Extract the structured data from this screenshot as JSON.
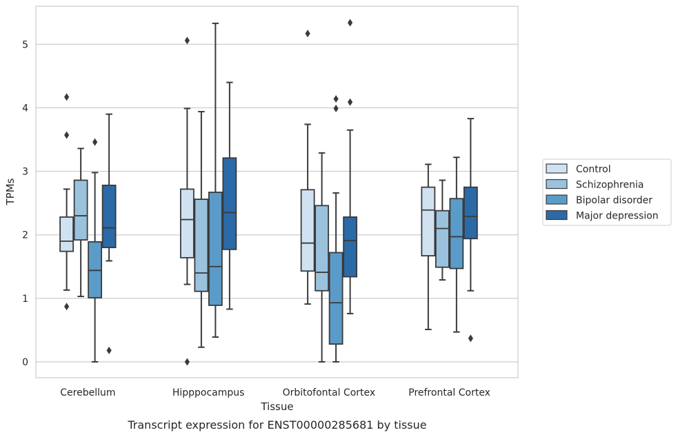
{
  "chart_data": {
    "type": "box",
    "caption": "Transcript expression for ENST00000285681 by tissue",
    "xlabel": "Tissue",
    "ylabel": "TPMs",
    "ylim": [
      -0.25,
      5.6
    ],
    "yticks": [
      0,
      1,
      2,
      3,
      4,
      5
    ],
    "grid": "horizontal",
    "legend_position": "right",
    "categories": [
      "Cerebellum",
      "Hipppocampus",
      "Orbitofontal Cortex",
      "Prefrontal Cortex"
    ],
    "series": [
      {
        "name": "Control",
        "color": "#d0e1f2",
        "boxes": [
          {
            "whisker_low": 1.13,
            "q1": 1.74,
            "median": 1.9,
            "q3": 2.28,
            "whisker_high": 2.72,
            "outliers": [
              0.87,
              3.57,
              4.17
            ]
          },
          {
            "whisker_low": 1.22,
            "q1": 1.64,
            "median": 2.24,
            "q3": 2.72,
            "whisker_high": 3.99,
            "outliers": [
              0.0,
              5.06
            ]
          },
          {
            "whisker_low": 0.91,
            "q1": 1.43,
            "median": 1.87,
            "q3": 2.71,
            "whisker_high": 3.74,
            "outliers": [
              5.17
            ]
          },
          {
            "whisker_low": 0.51,
            "q1": 1.67,
            "median": 2.39,
            "q3": 2.75,
            "whisker_high": 3.11,
            "outliers": []
          }
        ]
      },
      {
        "name": "Schizophrenia",
        "color": "#9ac2dc",
        "boxes": [
          {
            "whisker_low": 1.03,
            "q1": 1.92,
            "median": 2.3,
            "q3": 2.86,
            "whisker_high": 3.36,
            "outliers": []
          },
          {
            "whisker_low": 0.23,
            "q1": 1.11,
            "median": 1.4,
            "q3": 2.56,
            "whisker_high": 3.94,
            "outliers": []
          },
          {
            "whisker_low": 0.0,
            "q1": 1.12,
            "median": 1.41,
            "q3": 2.46,
            "whisker_high": 3.29,
            "outliers": []
          },
          {
            "whisker_low": 1.29,
            "q1": 1.49,
            "median": 2.1,
            "q3": 2.38,
            "whisker_high": 2.86,
            "outliers": []
          }
        ]
      },
      {
        "name": "Bipolar disorder",
        "color": "#5b9bc9",
        "boxes": [
          {
            "whisker_low": 0.0,
            "q1": 1.01,
            "median": 1.44,
            "q3": 1.89,
            "whisker_high": 2.98,
            "outliers": [
              3.46
            ]
          },
          {
            "whisker_low": 0.39,
            "q1": 0.89,
            "median": 1.5,
            "q3": 2.67,
            "whisker_high": 5.33,
            "outliers": []
          },
          {
            "whisker_low": 0.0,
            "q1": 0.28,
            "median": 0.93,
            "q3": 1.72,
            "whisker_high": 2.66,
            "outliers": [
              3.99,
              4.14
            ]
          },
          {
            "whisker_low": 0.47,
            "q1": 1.47,
            "median": 1.97,
            "q3": 2.57,
            "whisker_high": 3.22,
            "outliers": []
          }
        ]
      },
      {
        "name": "Major depression",
        "color": "#2b6aa6",
        "boxes": [
          {
            "whisker_low": 1.59,
            "q1": 1.8,
            "median": 2.11,
            "q3": 2.78,
            "whisker_high": 3.9,
            "outliers": [
              0.18
            ]
          },
          {
            "whisker_low": 0.83,
            "q1": 1.77,
            "median": 2.35,
            "q3": 3.21,
            "whisker_high": 4.4,
            "outliers": []
          },
          {
            "whisker_low": 0.76,
            "q1": 1.34,
            "median": 1.91,
            "q3": 2.28,
            "whisker_high": 3.65,
            "outliers": [
              4.09,
              5.34
            ]
          },
          {
            "whisker_low": 1.12,
            "q1": 1.94,
            "median": 2.29,
            "q3": 2.75,
            "whisker_high": 3.83,
            "outliers": [
              0.37
            ]
          }
        ]
      }
    ]
  }
}
